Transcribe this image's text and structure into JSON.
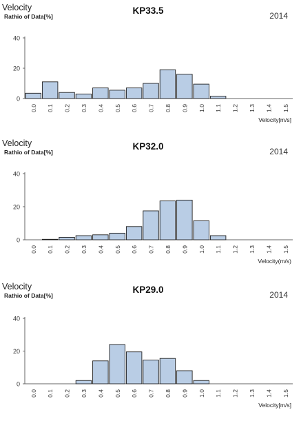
{
  "chart_data": [
    {
      "type": "bar",
      "title": "KP33.5",
      "label_top": "Velocity",
      "ylabel": "Rathio of Data[%]",
      "xlabel": "Velocity[m/s]",
      "year": "2014",
      "categories": [
        "0.0",
        "0.1",
        "0.2",
        "0.3",
        "0.4",
        "0.5",
        "0.6",
        "0.7",
        "0.8",
        "0.9",
        "1.0",
        "1.1",
        "1.2",
        "1.3",
        "1.4",
        "1.5"
      ],
      "values": [
        3.5,
        11,
        4,
        3,
        7,
        5.5,
        7,
        10,
        19,
        16,
        9.5,
        1.5,
        0,
        0,
        0,
        0
      ],
      "yticks": [
        0,
        20,
        40
      ],
      "ylim": [
        0,
        40
      ],
      "grid": false,
      "colors": {
        "bar_fill": "#b9cde5",
        "bar_stroke": "#1f1f1f",
        "axis": "#666666"
      }
    },
    {
      "type": "bar",
      "title": "KP32.0",
      "label_top": "Velocity",
      "ylabel": "Rathio of Data[%]",
      "xlabel": "Velocity(m/s)",
      "year": "2014",
      "categories": [
        "0.0",
        "0.1",
        "0.2",
        "0.3",
        "0.4",
        "0.5",
        "0.6",
        "0.7",
        "0.8",
        "0.9",
        "1.0",
        "1.1",
        "1.2",
        "1.3",
        "1.4",
        "1.5"
      ],
      "values": [
        0,
        0.3,
        1.5,
        2.5,
        3,
        4,
        8,
        17.5,
        23.5,
        24,
        11.5,
        2.5,
        0,
        0,
        0,
        0
      ],
      "yticks": [
        0,
        20,
        40
      ],
      "ylim": [
        0,
        40
      ],
      "grid": false,
      "colors": {
        "bar_fill": "#b9cde5",
        "bar_stroke": "#1f1f1f",
        "axis": "#666666"
      }
    },
    {
      "type": "bar",
      "title": "KP29.0",
      "label_top": "Velocity",
      "ylabel": "Rathio of Data[%]",
      "xlabel": "Velocity[m/s]",
      "year": "2014",
      "categories": [
        "0.0",
        "0.1",
        "0.2",
        "0.3",
        "0.4",
        "0.5",
        "0.6",
        "0.7",
        "0.8",
        "0.9",
        "1.0",
        "1.1",
        "1.2",
        "1.3",
        "1.4",
        "1.5"
      ],
      "values": [
        0,
        0,
        0,
        2,
        14,
        24,
        19.5,
        14.5,
        15.5,
        8,
        2,
        0,
        0,
        0,
        0,
        0
      ],
      "yticks": [
        0,
        20,
        40
      ],
      "ylim": [
        0,
        40
      ],
      "grid": false,
      "colors": {
        "bar_fill": "#b9cde5",
        "bar_stroke": "#1f1f1f",
        "axis": "#666666"
      }
    }
  ]
}
